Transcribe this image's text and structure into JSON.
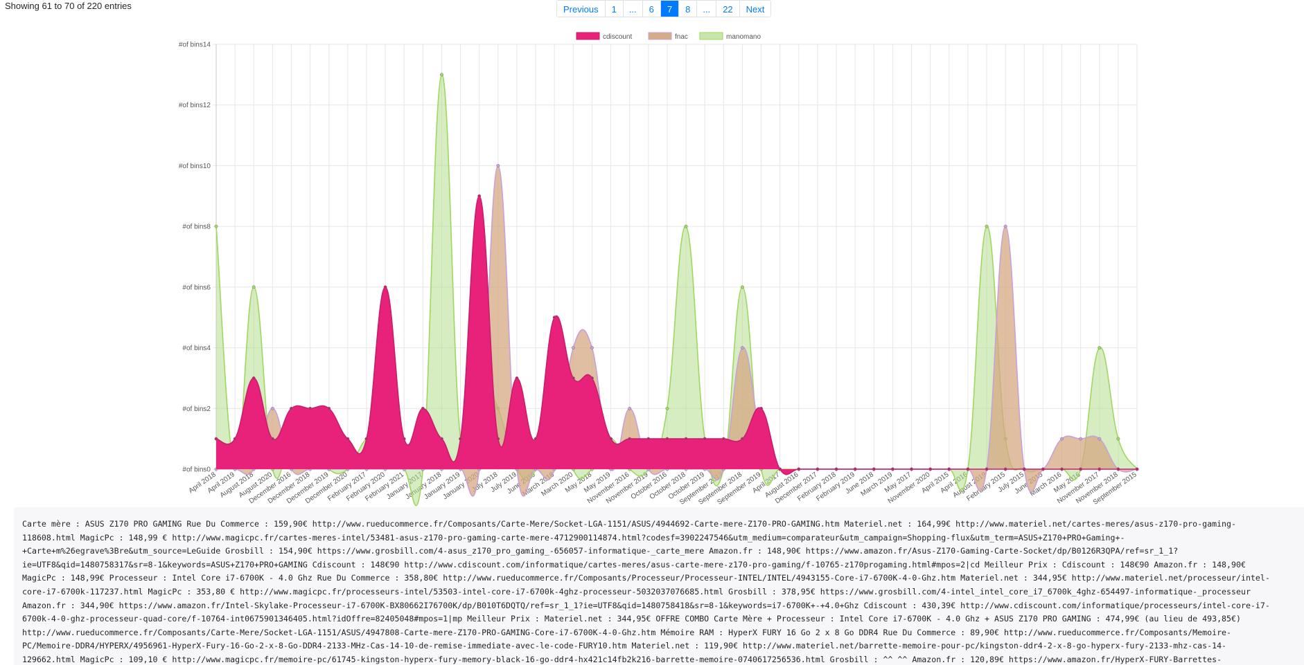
{
  "entries_info": "Showing 61 to 70 of 220 entries",
  "pagination": {
    "items": [
      "Previous",
      "1",
      "...",
      "6",
      "7",
      "8",
      "...",
      "22",
      "Next"
    ],
    "active": "7"
  },
  "chart_data": {
    "type": "area",
    "ylim": [
      0,
      14
    ],
    "grid": true,
    "legend_position": "top",
    "yticks": [
      "#of bins0",
      "#of bins2",
      "#of bins4",
      "#of bins6",
      "#of bins8",
      "#of bins10",
      "#of bins12",
      "#of bins14"
    ],
    "categories": [
      "April 2018",
      "April 2019",
      "August 2018",
      "August 2020",
      "December 2016",
      "December 2018",
      "December 2019",
      "December 2020",
      "February 2017",
      "February 2020",
      "February 2021",
      "January 2017",
      "January 2018",
      "January 2019",
      "January 2020",
      "July 2018",
      "July 2019",
      "June 2019",
      "March 2018",
      "March 2020",
      "May 2018",
      "May 2019",
      "November 2016",
      "November 2019",
      "October 2016",
      "October 2018",
      "October 2019",
      "September 2017",
      "September 2018",
      "September 2019",
      "April 2017",
      "August 2016",
      "December 2017",
      "February 2018",
      "February 2019",
      "June 2018",
      "March 2019",
      "May 2017",
      "November 2020",
      "April 2015",
      "April 2016",
      "August 2019",
      "February 2015",
      "July 2015",
      "June 2015",
      "March 2016",
      "May 2016",
      "November 2017",
      "November 2018",
      "September 2015"
    ],
    "series": [
      {
        "name": "cdiscount",
        "color": "#e8217a",
        "values": [
          1,
          1,
          3,
          1,
          2,
          2,
          2,
          1,
          1,
          6,
          1,
          2,
          1,
          1,
          9,
          1,
          3,
          1,
          5,
          3,
          3,
          1,
          1,
          1,
          1,
          1,
          1,
          1,
          1,
          2,
          0,
          0,
          0,
          0,
          0,
          0,
          0,
          0,
          0,
          0,
          0,
          0,
          0,
          0,
          0,
          0,
          0,
          0,
          0,
          0
        ]
      },
      {
        "name": "fnac",
        "color": "#d4a882",
        "values": [
          0,
          0,
          0,
          2,
          0,
          0,
          0,
          0,
          0,
          0,
          0,
          0,
          0,
          0,
          0,
          10,
          0,
          0,
          0,
          4,
          4,
          0,
          2,
          0,
          0,
          0,
          0,
          0,
          4,
          1,
          0,
          0,
          0,
          0,
          0,
          0,
          0,
          0,
          0,
          0,
          0,
          0,
          8,
          0,
          0,
          1,
          1,
          1,
          0,
          0
        ]
      },
      {
        "name": "manomano",
        "color": "#b5dc8e",
        "values": [
          8,
          0,
          6,
          0,
          1,
          1,
          0,
          0,
          1,
          1,
          0,
          0,
          13,
          1,
          3,
          2,
          0,
          0,
          3,
          0,
          0,
          1,
          0,
          0,
          2,
          8,
          1,
          0,
          6,
          0,
          0,
          0,
          0,
          0,
          0,
          0,
          0,
          0,
          0,
          0,
          0,
          8,
          1,
          0,
          0,
          0,
          0,
          4,
          1,
          0
        ]
      }
    ]
  },
  "code_lines": [
    "Carte mère : ASUS Z170 PRO GAMING Rue Du Commerce : 159,90€ http://www.rueducommerce.fr/Composants/Carte-Mere/Socket-LGA-1151/ASUS/4944692-Carte-mere-Z170-PRO-GAMING.htm Materiel.net : 164,99€ http://www.materiel.net/cartes-meres/asus-z170-pro-gaming-",
    "118608.html MagicPc : 148,99 € http://www.magicpc.fr/cartes-meres-intel/53481-asus-z170-pro-gaming-carte-mere-4712900114874.html?codesf=3902247546&utm_medium=comparateur&utm_campaign=Shopping-flux&utm_term=ASUS+Z170+PRO+Gaming+-",
    "+Carte+m%26egrave%3Bre&utm_source=LeGuide Grosbill : 154,90€ https://www.grosbill.com/4-asus_z170_pro_gaming_-656057-informatique-_carte_mere Amazon.fr : 148,90€ https://www.amazon.fr/Asus-Z170-Gaming-Carte-Socket/dp/B0126R3QPA/ref=sr_1_1?",
    "ie=UTF8&qid=1480758317&sr=8-1&keywords=ASUS+Z170+PRO+GAMING Cdiscount : 148€90 http://www.cdiscount.com/informatique/cartes-meres/asus-carte-mere-z170-pro-gaming/f-10765-z170progaming.html#mpos=2|cd Meilleur Prix : Cdiscount : 148€90 Amazon.fr : 148,90€",
    "MagicPc : 148,99€ Processeur : Intel Core i7-6700K - 4.0 Ghz Rue Du Commerce : 358,80€ http://www.rueducommerce.fr/Composants/Processeur/Processeur-INTEL/INTEL/4943155-Core-i7-6700K-4-0-Ghz.htm Materiel.net : 344,95€ http://www.materiel.net/processeur/intel-",
    "core-i7-6700k-117237.html MagicPc : 353,80 € http://www.magicpc.fr/processeurs-intel/53503-intel-core-i7-6700k-4ghz-processeur-5032037076685.html Grosbill : 378,95€ https://www.grosbill.com/4-intel_intel_core_i7_6700k_4ghz-654497-informatique-_processeur",
    "Amazon.fr : 344,90€ https://www.amazon.fr/Intel-Skylake-Processeur-i7-6700K-BX80662I76700K/dp/B010T6DQTQ/ref=sr_1_1?ie=UTF8&qid=1480758418&sr=8-1&keywords=i7-6700K+-+4.0+Ghz Cdiscount : 430,39€ http://www.cdiscount.com/informatique/processeurs/intel-core-i7-",
    "6700k-4-0-ghz-processeur-quad-core/f-10764-int0675901346405.html?idOffre=82405048#mpos=1|mp Meilleur Prix : Materiel.net : 344,95€ OFFRE COMBO Carte Mère + Processeur : Intel Core i7-6700K - 4.0 Ghz + ASUS Z170 PRO GAMING : 474,99€ (au lieu de 493,85€)",
    "http://www.rueducommerce.fr/Composants/Carte-Mere/Socket-LGA-1151/ASUS/4947808-Carte-mere-Z170-PRO-GAMING-Core-i7-6700K-4-0-Ghz.htm Mémoire RAM : HyperX FURY 16 Go 2 x 8 Go DDR4 Rue Du Commerce : 89,90€ http://www.rueducommerce.fr/Composants/Memoire-",
    "PC/Memoire-DDR4/HYPERX/4956961-HyperX-Fury-16-Go-2-x-8-Go-DDR4-2133-MHz-Cas-14-10-de-remise-immediate-avec-le-code-FURY10.htm Materiel.net : 119,90€ http://www.materiel.net/barrette-memoire-pour-pc/kingston-ddr4-2-x-8-go-hyperx-fury-2133-mhz-cas-14-",
    "129662.html MagicPc : 109,10 € http://www.magicpc.fr/memoire-pc/61745-kingston-hyperx-fury-memory-black-16-go-ddr4-hx421c14fb2k216-barrette-memoire-0740617256536.html Grosbill : ^^ ^^ Amazon.fr : 120,89€ https://www.amazon.fr/HyperX-FURY-Barrettes-"
  ]
}
